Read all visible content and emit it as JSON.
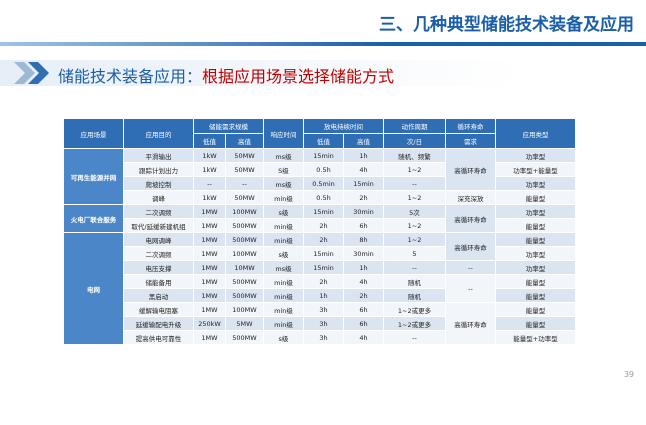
{
  "header": {
    "title": "三、几种典型储能技术装备及应用",
    "subtitle_lead": "储能技术装备应用：",
    "subtitle_main": "根据应用场景选择储能方式",
    "page_number": "39"
  },
  "table": {
    "headers": {
      "scenario": "应用场景",
      "purpose": "应用目的",
      "scale": "储能需求规模",
      "scale_low": "低值",
      "scale_high": "高值",
      "response": "响应时间",
      "duration": "放电持续时间",
      "duration_low": "低值",
      "duration_high": "高值",
      "cycle": "动作周期",
      "cycle_unit": "次/日",
      "life": "循环寿命",
      "life_unit": "需求",
      "type": "应用类型"
    },
    "groups": [
      {
        "scenario": "可再生能源并网",
        "rows": [
          [
            "平滑输出",
            "1kW",
            "50MW",
            "ms级",
            "15min",
            "1h",
            "随机、频繁",
            "功率型"
          ],
          [
            "跟踪计划出力",
            "1kW",
            "50MW",
            "S级",
            "0.5h",
            "4h",
            "1~2",
            "功率型+能量型"
          ],
          [
            "爬坡控制",
            "--",
            "--",
            "ms级",
            "0.5min",
            "15min",
            "--",
            "功率型"
          ],
          [
            "调峰",
            "1kW",
            "50MW",
            "min级",
            "0.5h",
            "2h",
            "1~2",
            "能量型"
          ]
        ]
      },
      {
        "scenario": "火电厂联合服务",
        "rows": [
          [
            "二次调频",
            "1MW",
            "100MW",
            "s级",
            "15min",
            "30min",
            "5次",
            "功率型"
          ],
          [
            "取代/延缓新建机组",
            "1MW",
            "500MW",
            "min级",
            "2h",
            "6h",
            "1~2",
            "能量型"
          ]
        ]
      },
      {
        "scenario": "电网",
        "rows": [
          [
            "电网调峰",
            "1MW",
            "500MW",
            "min级",
            "2h",
            "8h",
            "1~2",
            "能量型"
          ],
          [
            "二次调频",
            "1MW",
            "100MW",
            "s级",
            "15min",
            "30min",
            "5",
            "功率型"
          ],
          [
            "电压支撑",
            "1MW",
            "10MW",
            "ms级",
            "15min",
            "1h",
            "--",
            "功率型"
          ],
          [
            "储能备用",
            "1MW",
            "500MW",
            "min级",
            "2h",
            "4h",
            "随机",
            "能量型"
          ],
          [
            "黑启动",
            "1MW",
            "500MW",
            "min级",
            "1h",
            "2h",
            "随机",
            "能量型"
          ],
          [
            "缓解输电阻塞",
            "1MW",
            "100MW",
            "min级",
            "3h",
            "6h",
            "1~2或更多",
            "能量型"
          ],
          [
            "延缓输配电升级",
            "250kW",
            "5MW",
            "min级",
            "3h",
            "6h",
            "1~2或更多",
            "能量型"
          ],
          [
            "提高供电可靠性",
            "1MW",
            "500MW",
            "s级",
            "3h",
            "4h",
            "--",
            "能量型+功率型"
          ]
        ]
      }
    ],
    "life": [
      "高循环寿命",
      "深充深放",
      "高循环寿命",
      "高循环寿命",
      "--",
      "--",
      "高循环寿命"
    ]
  }
}
